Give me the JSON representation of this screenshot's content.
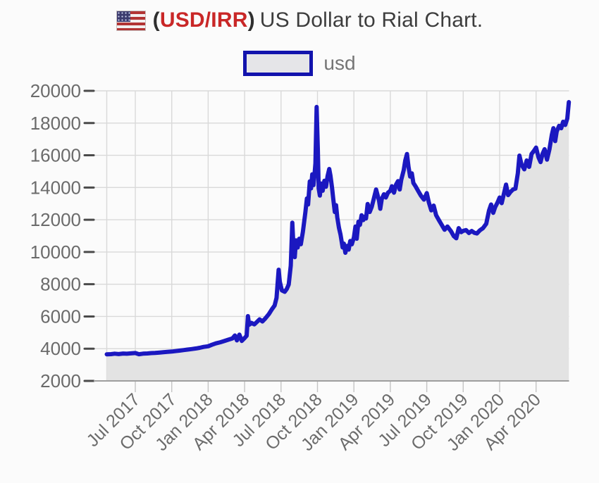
{
  "header": {
    "flag_icon": "us-flag",
    "paren_open": "(",
    "pair_label": "USD/IRR",
    "paren_close": ")",
    "title_rest": "US Dollar to Rial Chart.",
    "accent_color": "#c92727",
    "text_color": "#3d3d3d"
  },
  "legend": {
    "label": "usd",
    "swatch_border_color": "#1213ad",
    "swatch_fill_color": "#e5e5e8",
    "text_color": "#757575"
  },
  "chart_data": {
    "type": "area",
    "title": "(USD/IRR) US Dollar to Rial Chart.",
    "series_name": "usd",
    "x_tick_labels": [
      "Jul 2017",
      "Oct 2017",
      "Jan 2018",
      "Apr 2018",
      "Jul 2018",
      "Oct 2018",
      "Jan 2019",
      "Apr 2019",
      "Jul 2019",
      "Oct 2019",
      "Jan 2020",
      "Apr 2020"
    ],
    "y_ticks": [
      2000,
      4000,
      6000,
      8000,
      10000,
      12000,
      14000,
      16000,
      18000,
      20000
    ],
    "y_min": 2000,
    "y_max": 20000,
    "x_unit": "months since 2017-05-01",
    "grid": true,
    "legend_position": "top-center",
    "line_color": "#1b18c0",
    "fill_color": "#e3e3e3",
    "grid_color": "#d9d9d9",
    "axis_color": "#9e9e9e",
    "tick_color": "#4a4a4a",
    "x_tick_color": "#c4c4c4",
    "label_color": "#6b6b6b",
    "points": [
      [
        -0.35,
        3650
      ],
      [
        0,
        3660
      ],
      [
        0.3,
        3690
      ],
      [
        0.63,
        3665
      ],
      [
        1,
        3700
      ],
      [
        1.3,
        3685
      ],
      [
        1.63,
        3710
      ],
      [
        2,
        3730
      ],
      [
        2.3,
        3655
      ],
      [
        2.63,
        3690
      ],
      [
        3,
        3705
      ],
      [
        3.3,
        3725
      ],
      [
        3.63,
        3740
      ],
      [
        4,
        3760
      ],
      [
        4.3,
        3780
      ],
      [
        4.63,
        3800
      ],
      [
        5,
        3820
      ],
      [
        5.3,
        3850
      ],
      [
        5.63,
        3880
      ],
      [
        6,
        3915
      ],
      [
        6.3,
        3945
      ],
      [
        6.63,
        3975
      ],
      [
        7,
        4015
      ],
      [
        7.3,
        4055
      ],
      [
        7.63,
        4110
      ],
      [
        8,
        4150
      ],
      [
        8.3,
        4240
      ],
      [
        8.63,
        4330
      ],
      [
        9,
        4400
      ],
      [
        9.3,
        4470
      ],
      [
        9.63,
        4550
      ],
      [
        10,
        4640
      ],
      [
        10.2,
        4820
      ],
      [
        10.37,
        4510
      ],
      [
        10.57,
        4870
      ],
      [
        10.77,
        4480
      ],
      [
        11,
        4660
      ],
      [
        11.17,
        4800
      ],
      [
        11.27,
        6020
      ],
      [
        11.37,
        5480
      ],
      [
        11.57,
        5600
      ],
      [
        11.8,
        5510
      ],
      [
        12,
        5650
      ],
      [
        12.23,
        5820
      ],
      [
        12.47,
        5690
      ],
      [
        12.7,
        5870
      ],
      [
        13,
        6150
      ],
      [
        13.23,
        6420
      ],
      [
        13.47,
        6680
      ],
      [
        13.63,
        7150
      ],
      [
        13.8,
        8900
      ],
      [
        13.9,
        8150
      ],
      [
        14.07,
        7620
      ],
      [
        14.3,
        7530
      ],
      [
        14.47,
        7700
      ],
      [
        14.63,
        7980
      ],
      [
        14.8,
        9150
      ],
      [
        14.93,
        11820
      ],
      [
        15.03,
        10250
      ],
      [
        15.13,
        9680
      ],
      [
        15.23,
        10720
      ],
      [
        15.37,
        10280
      ],
      [
        15.5,
        10820
      ],
      [
        15.63,
        10480
      ],
      [
        15.8,
        11250
      ],
      [
        16,
        12450
      ],
      [
        16.13,
        13320
      ],
      [
        16.23,
        12950
      ],
      [
        16.37,
        14380
      ],
      [
        16.47,
        13950
      ],
      [
        16.57,
        14820
      ],
      [
        16.67,
        14150
      ],
      [
        16.77,
        14900
      ],
      [
        16.83,
        15500
      ],
      [
        16.93,
        19000
      ],
      [
        17.03,
        16400
      ],
      [
        17.1,
        13950
      ],
      [
        17.2,
        13500
      ],
      [
        17.3,
        14250
      ],
      [
        17.43,
        13800
      ],
      [
        17.57,
        14420
      ],
      [
        17.7,
        14050
      ],
      [
        17.83,
        14700
      ],
      [
        17.97,
        15150
      ],
      [
        18.07,
        14750
      ],
      [
        18.2,
        13980
      ],
      [
        18.3,
        13300
      ],
      [
        18.43,
        12480
      ],
      [
        18.53,
        12900
      ],
      [
        18.63,
        12150
      ],
      [
        18.77,
        11500
      ],
      [
        18.9,
        11080
      ],
      [
        19.07,
        10280
      ],
      [
        19.17,
        10520
      ],
      [
        19.3,
        9950
      ],
      [
        19.43,
        10380
      ],
      [
        19.57,
        10150
      ],
      [
        19.7,
        10680
      ],
      [
        19.83,
        10480
      ],
      [
        20,
        10900
      ],
      [
        20.13,
        11580
      ],
      [
        20.23,
        10820
      ],
      [
        20.37,
        11880
      ],
      [
        20.5,
        11680
      ],
      [
        20.63,
        12280
      ],
      [
        20.77,
        11980
      ],
      [
        20.9,
        12200
      ],
      [
        21,
        12080
      ],
      [
        21.13,
        12980
      ],
      [
        21.3,
        12480
      ],
      [
        21.47,
        12800
      ],
      [
        21.63,
        13280
      ],
      [
        21.83,
        13880
      ],
      [
        22.07,
        13180
      ],
      [
        22.17,
        12680
      ],
      [
        22.3,
        13300
      ],
      [
        22.47,
        13580
      ],
      [
        22.63,
        13380
      ],
      [
        22.8,
        13680
      ],
      [
        23,
        13800
      ],
      [
        23.13,
        14080
      ],
      [
        23.3,
        13680
      ],
      [
        23.47,
        14180
      ],
      [
        23.63,
        14400
      ],
      [
        23.77,
        13880
      ],
      [
        23.9,
        14480
      ],
      [
        24.1,
        15080
      ],
      [
        24.23,
        15680
      ],
      [
        24.37,
        16080
      ],
      [
        24.5,
        15280
      ],
      [
        24.63,
        14680
      ],
      [
        24.77,
        14880
      ],
      [
        24.9,
        14280
      ],
      [
        25.07,
        14080
      ],
      [
        25.3,
        13780
      ],
      [
        25.53,
        13480
      ],
      [
        25.77,
        13250
      ],
      [
        26,
        13650
      ],
      [
        26.17,
        13080
      ],
      [
        26.37,
        12580
      ],
      [
        26.57,
        12880
      ],
      [
        26.77,
        12280
      ],
      [
        27,
        11980
      ],
      [
        27.23,
        11680
      ],
      [
        27.47,
        11380
      ],
      [
        27.7,
        11580
      ],
      [
        28,
        11280
      ],
      [
        28.23,
        10980
      ],
      [
        28.43,
        10850
      ],
      [
        28.63,
        11480
      ],
      [
        28.83,
        11230
      ],
      [
        29,
        11310
      ],
      [
        29.23,
        11360
      ],
      [
        29.47,
        11180
      ],
      [
        29.7,
        11300
      ],
      [
        29.93,
        11190
      ],
      [
        30.13,
        11150
      ],
      [
        30.37,
        11340
      ],
      [
        30.63,
        11480
      ],
      [
        30.9,
        11750
      ],
      [
        31.13,
        12580
      ],
      [
        31.3,
        12950
      ],
      [
        31.47,
        12430
      ],
      [
        31.63,
        12780
      ],
      [
        31.83,
        13080
      ],
      [
        32,
        13380
      ],
      [
        32.17,
        13030
      ],
      [
        32.37,
        13680
      ],
      [
        32.53,
        14180
      ],
      [
        32.7,
        13530
      ],
      [
        32.9,
        13730
      ],
      [
        33.1,
        13880
      ],
      [
        33.3,
        13930
      ],
      [
        33.5,
        14880
      ],
      [
        33.63,
        15980
      ],
      [
        33.8,
        15430
      ],
      [
        34.03,
        15130
      ],
      [
        34.23,
        15680
      ],
      [
        34.43,
        15280
      ],
      [
        34.63,
        16080
      ],
      [
        34.83,
        16280
      ],
      [
        35,
        16480
      ],
      [
        35.2,
        15880
      ],
      [
        35.37,
        15580
      ],
      [
        35.53,
        16080
      ],
      [
        35.7,
        16380
      ],
      [
        35.9,
        15730
      ],
      [
        36.1,
        16380
      ],
      [
        36.3,
        17280
      ],
      [
        36.43,
        17680
      ],
      [
        36.57,
        16880
      ],
      [
        36.7,
        17480
      ],
      [
        36.9,
        17830
      ],
      [
        37.07,
        17680
      ],
      [
        37.23,
        18080
      ],
      [
        37.4,
        17880
      ],
      [
        37.57,
        18280
      ],
      [
        37.7,
        19300
      ]
    ]
  }
}
